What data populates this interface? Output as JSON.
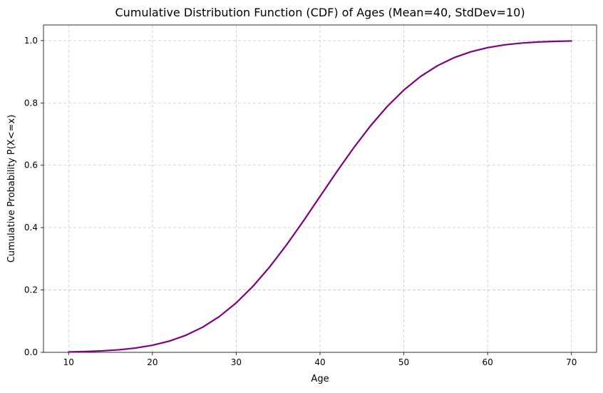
{
  "chart_data": {
    "type": "line",
    "title": "Cumulative Distribution Function (CDF) of Ages (Mean=40, StdDev=10)",
    "xlabel": "Age",
    "ylabel": "Cumulative Probability P(X<=x)",
    "xlim": [
      7,
      73
    ],
    "ylim": [
      0,
      1.05
    ],
    "x_ticks": [
      10,
      20,
      30,
      40,
      50,
      60,
      70
    ],
    "y_ticks": [
      0.0,
      0.2,
      0.4,
      0.6,
      0.8,
      1.0
    ],
    "x_tick_labels": [
      "10",
      "20",
      "30",
      "40",
      "50",
      "60",
      "70"
    ],
    "y_tick_labels": [
      "0.0",
      "0.2",
      "0.4",
      "0.6",
      "0.8",
      "1.0"
    ],
    "grid": true,
    "grid_style": "dashed",
    "legend": null,
    "color": "#800080",
    "series": [
      {
        "x": [
          10,
          12,
          14,
          16,
          18,
          20,
          22,
          24,
          26,
          28,
          30,
          32,
          34,
          36,
          38,
          40,
          42,
          44,
          46,
          48,
          50,
          52,
          54,
          56,
          58,
          60,
          62,
          64,
          66,
          68,
          70
        ],
        "y": [
          0.0013,
          0.0026,
          0.0047,
          0.0082,
          0.0139,
          0.0228,
          0.0359,
          0.0548,
          0.0808,
          0.1151,
          0.1587,
          0.2119,
          0.2743,
          0.3446,
          0.4207,
          0.5,
          0.5793,
          0.6554,
          0.7257,
          0.7881,
          0.8413,
          0.8849,
          0.9192,
          0.9452,
          0.9641,
          0.9772,
          0.9861,
          0.9918,
          0.9953,
          0.9974,
          0.9987
        ]
      }
    ]
  }
}
